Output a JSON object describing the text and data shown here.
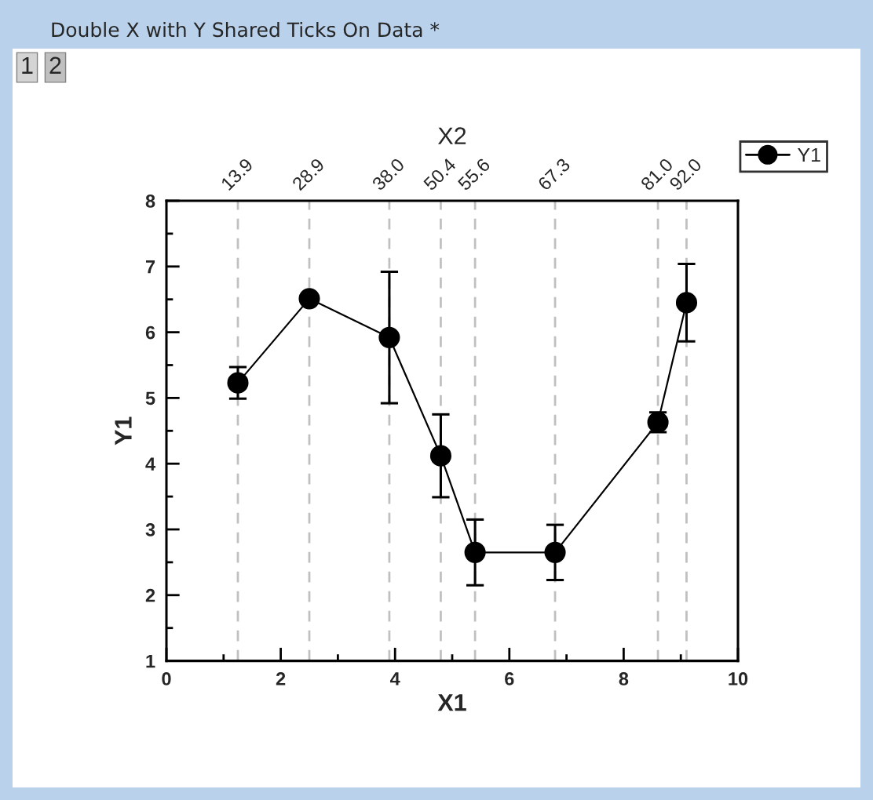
{
  "chart_data": {
    "type": "line",
    "title": "Double X with Y Shared Ticks On Data *",
    "annotations": [
      "1",
      "2",
      {
        "text": "13.9",
        "x": 1.25,
        "y": 8
      },
      {
        "text": "28.9",
        "x": 2.5,
        "y": 8
      },
      {
        "text": "38.0",
        "x": 3.9,
        "y": 8
      },
      {
        "text": "50.4",
        "x": 4.8,
        "y": 8
      },
      {
        "text": "55.6",
        "x": 5.4,
        "y": 8
      },
      {
        "text": "67.3",
        "x": 6.8,
        "y": 8
      },
      {
        "text": "81.0",
        "x": 8.6,
        "y": 8
      },
      {
        "text": "92.0",
        "x": 9.1,
        "y": 8
      }
    ],
    "xlabel": "X1",
    "ylabel": "Y1",
    "x2label": "X2",
    "x": [
      1.25,
      2.5,
      3.9,
      4.8,
      5.4,
      6.8,
      8.6,
      9.1
    ],
    "series": [
      {
        "name": "Y1",
        "color": "#000000",
        "values": [
          5.23,
          6.51,
          5.92,
          4.12,
          2.65,
          2.65,
          4.63,
          6.45
        ],
        "errors": [
          0.24,
          null,
          1.0,
          0.63,
          0.5,
          0.42,
          0.15,
          0.59
        ]
      }
    ],
    "marker": "circle",
    "line_style": "solid",
    "xlim": [
      0,
      10
    ],
    "ylim": [
      1,
      8
    ],
    "xticks": [
      0,
      {
        "value": 1,
        "label": null
      },
      2,
      {
        "value": 3,
        "label": null
      },
      4,
      {
        "value": 5,
        "label": null
      },
      6,
      {
        "value": 7,
        "label": null
      },
      8,
      {
        "value": 9,
        "label": null
      },
      10
    ],
    "yticks": [
      1,
      {
        "value": 1.5,
        "label": null
      },
      2,
      {
        "value": 2.5,
        "label": null
      },
      3,
      {
        "value": 3.5,
        "label": null
      },
      4,
      {
        "value": 4.5,
        "label": null
      },
      5,
      {
        "value": 5.5,
        "label": null
      },
      6,
      {
        "value": 6.5,
        "label": null
      },
      7,
      {
        "value": 7.5,
        "label": null
      },
      8
    ],
    "ref_lines": [
      {
        "axis": "x",
        "value": 1.25,
        "color": "#c0c0c0",
        "line_style": "dashed"
      },
      {
        "axis": "x",
        "value": 2.5,
        "color": "#c0c0c0",
        "line_style": "dashed"
      },
      {
        "axis": "x",
        "value": 3.9,
        "color": "#c0c0c0",
        "line_style": "dashed"
      },
      {
        "axis": "x",
        "value": 4.8,
        "color": "#c0c0c0",
        "line_style": "dashed"
      },
      {
        "axis": "x",
        "value": 5.4,
        "color": "#c0c0c0",
        "line_style": "dashed"
      },
      {
        "axis": "x",
        "value": 6.8,
        "color": "#c0c0c0",
        "line_style": "dashed"
      },
      {
        "axis": "x",
        "value": 8.6,
        "color": "#c0c0c0",
        "line_style": "dashed"
      },
      {
        "axis": "x",
        "value": 9.1,
        "color": "#c0c0c0",
        "line_style": "dashed"
      }
    ],
    "legend": "top right"
  }
}
